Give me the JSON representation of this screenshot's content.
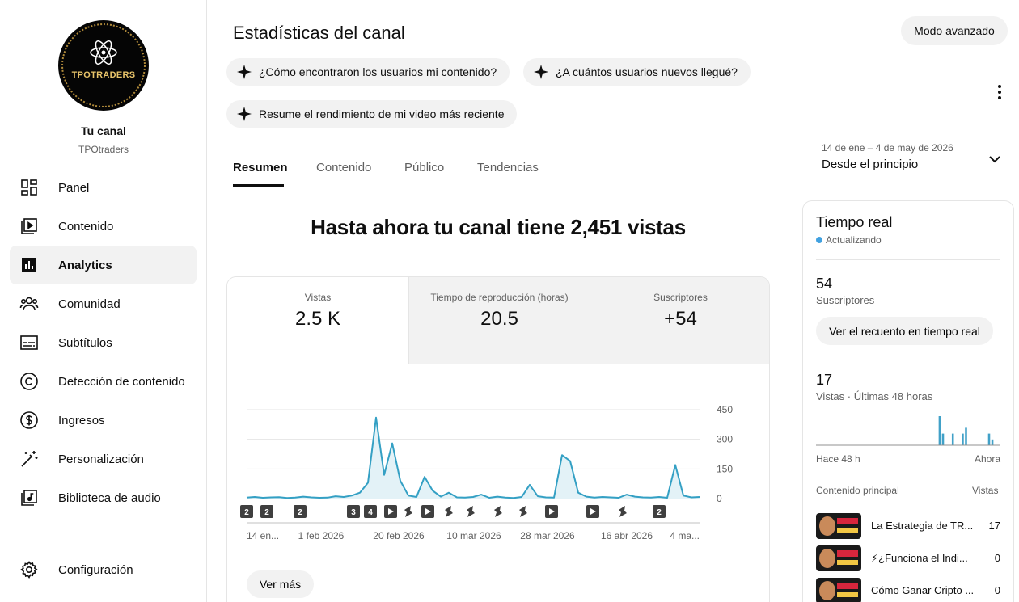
{
  "sidebar": {
    "channel": {
      "name": "Tu canal",
      "handle": "TPOtraders",
      "logo_text": "TPOTRADERS"
    },
    "items": [
      {
        "label": "Panel",
        "icon": "dashboard-icon",
        "active": false
      },
      {
        "label": "Contenido",
        "icon": "content-icon",
        "active": false
      },
      {
        "label": "Analytics",
        "icon": "analytics-icon",
        "active": true
      },
      {
        "label": "Comunidad",
        "icon": "community-icon",
        "active": false
      },
      {
        "label": "Subtítulos",
        "icon": "subtitles-icon",
        "active": false
      },
      {
        "label": "Detección de contenido",
        "icon": "copyright-icon",
        "active": false
      },
      {
        "label": "Ingresos",
        "icon": "dollar-icon",
        "active": false
      },
      {
        "label": "Personalización",
        "icon": "magic-wand-icon",
        "active": false
      },
      {
        "label": "Biblioteca de audio",
        "icon": "audio-library-icon",
        "active": false
      }
    ],
    "settings_label": "Configuración"
  },
  "header": {
    "title": "Estadísticas del canal",
    "advanced_mode": "Modo avanzado",
    "chips": [
      "¿Cómo encontraron los usuarios mi contenido?",
      "¿A cuántos usuarios nuevos llegué?",
      "Resume el rendimiento de mi video más reciente"
    ]
  },
  "tabs": [
    {
      "label": "Resumen",
      "active": true
    },
    {
      "label": "Contenido",
      "active": false
    },
    {
      "label": "Público",
      "active": false
    },
    {
      "label": "Tendencias",
      "active": false
    }
  ],
  "date_filter": {
    "range": "14 de ene – 4 de may de 2026",
    "label": "Desde el principio"
  },
  "headline": "Hasta ahora tu canal tiene 2,451 vistas",
  "metrics": [
    {
      "label": "Vistas",
      "value": "2.5 K"
    },
    {
      "label": "Tiempo de reproducción (horas)",
      "value": "20.5"
    },
    {
      "label": "Suscriptores",
      "value": "+54"
    }
  ],
  "see_more": "Ver más",
  "chart_data": {
    "type": "area",
    "x_tick_labels": [
      "14 en...",
      "1 feb 2026",
      "20 feb 2026",
      "10 mar 2026",
      "28 mar 2026",
      "16 abr 2026",
      "4 ma..."
    ],
    "y_tick_labels": [
      "450",
      "300",
      "150",
      "0"
    ],
    "ylim": [
      0,
      450
    ],
    "x": [
      0,
      2,
      4,
      6,
      8,
      10,
      12,
      14,
      16,
      18,
      20,
      22,
      24,
      26,
      28,
      30,
      32,
      34,
      36,
      38,
      40,
      42,
      44,
      46,
      48,
      50,
      52,
      54,
      56,
      58,
      60,
      62,
      64,
      66,
      68,
      70,
      72,
      74,
      76,
      78,
      80,
      82,
      84,
      86,
      88,
      90,
      92,
      94,
      96,
      98,
      100,
      102,
      104,
      106,
      108,
      110,
      112
    ],
    "values": [
      5,
      8,
      4,
      6,
      7,
      3,
      5,
      10,
      6,
      4,
      5,
      12,
      8,
      15,
      30,
      80,
      410,
      120,
      280,
      90,
      15,
      8,
      110,
      40,
      10,
      30,
      6,
      5,
      8,
      20,
      4,
      10,
      5,
      3,
      8,
      70,
      12,
      6,
      5,
      220,
      190,
      30,
      10,
      5,
      8,
      6,
      4,
      20,
      10,
      6,
      5,
      8,
      4,
      170,
      15,
      6,
      8
    ],
    "markers": [
      "2",
      "2",
      "2",
      "3",
      "4",
      "play-icon",
      "shorts-icon",
      "play-icon",
      "shorts-icon",
      "shorts-icon",
      "shorts-icon",
      "shorts-icon",
      "play-icon",
      "play-icon",
      "shorts-icon",
      "2"
    ],
    "grid": true
  },
  "realtime": {
    "title": "Tiempo real",
    "status": "Actualizando",
    "subs_value": "54",
    "subs_label": "Suscriptores",
    "realtime_button": "Ver el recuento en tiempo real",
    "views_value": "17",
    "views_label": "Vistas · Últimas 48 horas",
    "axis_left": "Hace 48 h",
    "axis_right": "Ahora",
    "bars": [
      0,
      0,
      0,
      0,
      0,
      0,
      0,
      0,
      0,
      0,
      0,
      0,
      0,
      0,
      0,
      0,
      0,
      0,
      0,
      0,
      0,
      0,
      0,
      0,
      0,
      0,
      0,
      0,
      0,
      0,
      0,
      0,
      0,
      0,
      0,
      0,
      0,
      5,
      2,
      0,
      0,
      2,
      0,
      0,
      2,
      3,
      0,
      0,
      0,
      0,
      0,
      0,
      2,
      1,
      0,
      0
    ],
    "top_header": "Contenido principal",
    "top_header_right": "Vistas",
    "top_content": [
      {
        "title": "La Estrategia de TR...",
        "views": "17"
      },
      {
        "title": "⚡¿Funciona el Indi...",
        "views": "0"
      },
      {
        "title": "Cómo Ganar Cripto ...",
        "views": "0"
      }
    ]
  }
}
